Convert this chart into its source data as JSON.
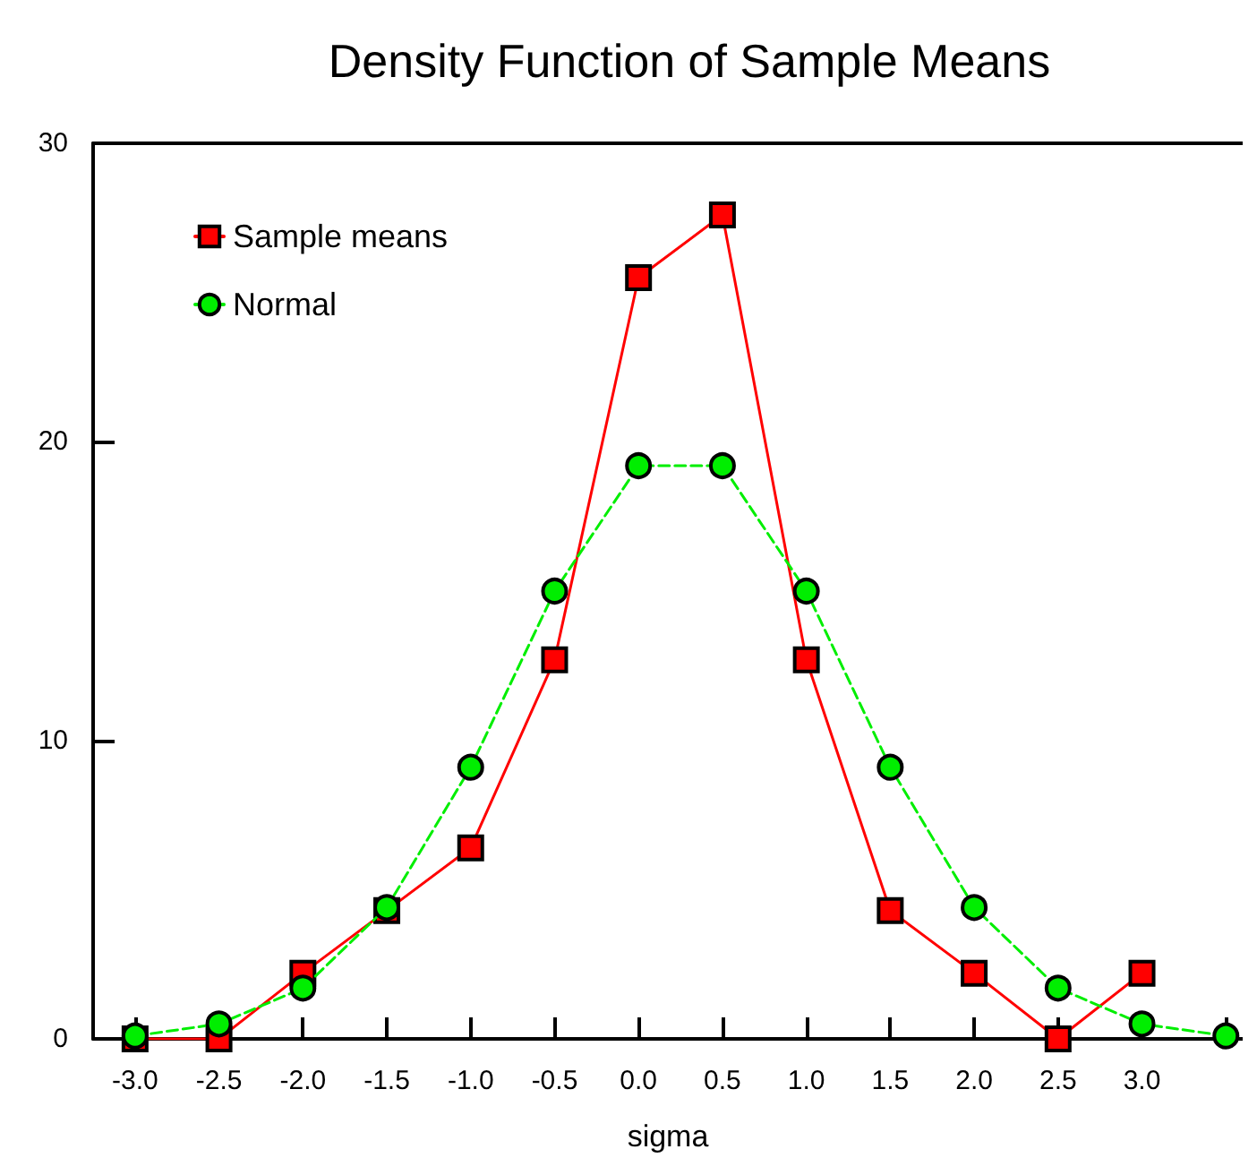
{
  "chart_data": {
    "type": "line",
    "title": "Density Function of Sample Means",
    "xlabel": "sigma",
    "x": [
      -3.0,
      -2.5,
      -2.0,
      -1.5,
      -1.0,
      -0.5,
      0.0,
      0.5,
      1.0,
      1.5,
      2.0,
      2.5,
      3.0,
      3.5
    ],
    "series": [
      {
        "name": "Sample means",
        "color": "#ff0000",
        "marker": "square",
        "line_style": "solid",
        "values": [
          0,
          0,
          2.2,
          4.3,
          6.4,
          12.7,
          25.5,
          27.6,
          12.7,
          4.3,
          2.2,
          0,
          2.2,
          null
        ]
      },
      {
        "name": "Normal",
        "color": "#00ee00",
        "marker": "circle",
        "line_style": "dashed",
        "values": [
          0.1,
          0.5,
          1.7,
          4.4,
          9.1,
          15.0,
          19.2,
          19.2,
          15.0,
          9.1,
          4.4,
          1.7,
          0.5,
          0.1
        ]
      }
    ],
    "xlim": [
      -3.25,
      3.6
    ],
    "xticks": [
      {
        "value": -3.0,
        "label": "-3.0"
      },
      {
        "value": -2.5,
        "label": "-2.5"
      },
      {
        "value": -2.0,
        "label": "-2.0"
      },
      {
        "value": -1.5,
        "label": "-1.5"
      },
      {
        "value": -1.0,
        "label": "-1.0"
      },
      {
        "value": -0.5,
        "label": "-0.5"
      },
      {
        "value": 0.0,
        "label": "0.0"
      },
      {
        "value": 0.5,
        "label": "0.5"
      },
      {
        "value": 1.0,
        "label": "1.0"
      },
      {
        "value": 1.5,
        "label": "1.5"
      },
      {
        "value": 2.0,
        "label": "2.0"
      },
      {
        "value": 2.5,
        "label": "2.5"
      },
      {
        "value": 3.0,
        "label": "3.0"
      },
      {
        "value": 3.5,
        "label": null
      }
    ],
    "ylim": [
      0,
      30
    ],
    "yticks": [
      0,
      10,
      20,
      30
    ],
    "grid": false,
    "legend": "top left"
  }
}
